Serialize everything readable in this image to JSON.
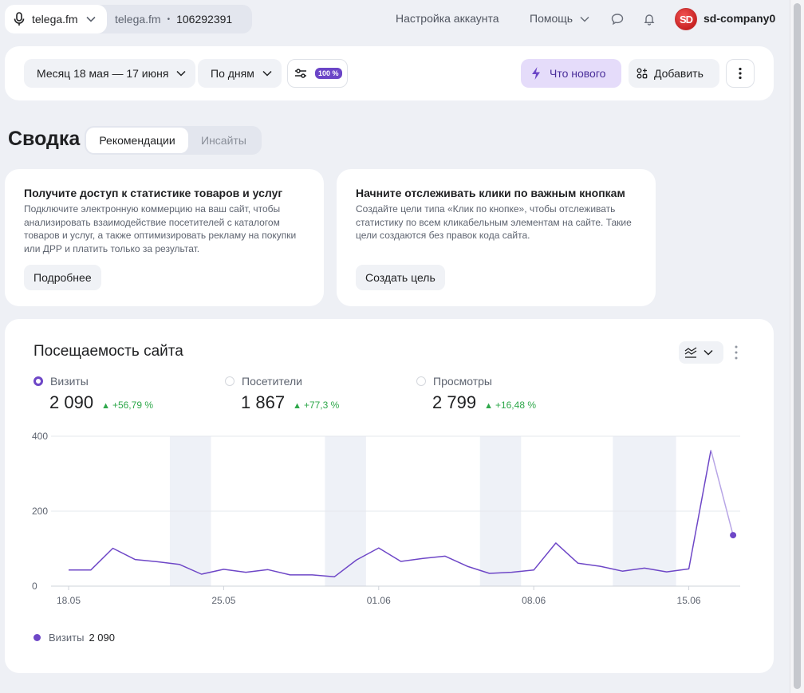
{
  "topbar": {
    "site_name": "telega.fm",
    "counter_site": "telega.fm",
    "counter_dot": "•",
    "counter_id": "106292391",
    "account_settings": "Настройка аккаунта",
    "help": "Помощь",
    "avatar_text": "SD",
    "username": "sd-company0"
  },
  "filters": {
    "period": "Месяц 18 мая — 17 июня",
    "grouping": "По дням",
    "sampling_badge": "100 %",
    "whats_new": "Что нового",
    "add": "Добавить"
  },
  "summary": {
    "title": "Сводка",
    "tabs": [
      "Рекомендации",
      "Инсайты"
    ],
    "cards": [
      {
        "title": "Получите доступ к статистике товаров и услуг",
        "text": "Подключите электронную коммерцию на ваш сайт, чтобы анализировать взаимодействие посетителей с каталогом товаров и услуг, а также оптимизировать рекламу на покупки или ДРР и платить только за результат.",
        "button": "Подробнее"
      },
      {
        "title": "Начните отслеживать клики по важным кнопкам",
        "text": "Создайте цели типа «Клик по кнопке», чтобы отслеживать статистику по всем кликабельным элементам на сайте. Такие цели создаются без правок кода сайта.",
        "button": "Создать цель"
      }
    ]
  },
  "traffic": {
    "title": "Посещаемость сайта",
    "metrics": [
      {
        "name": "Визиты",
        "value": "2 090",
        "delta": "+56,79 %",
        "selected": true
      },
      {
        "name": "Посетители",
        "value": "1 867",
        "delta": "+77,3 %",
        "selected": false
      },
      {
        "name": "Просмотры",
        "value": "2 799",
        "delta": "+16,48 %",
        "selected": false
      }
    ],
    "legend_name": "Визиты",
    "legend_value": "2 090"
  },
  "colors": {
    "accent": "#6e47c7",
    "positive": "#2fa84b",
    "weekend_band": "#eef1f7"
  },
  "chart_data": {
    "type": "line",
    "ylim": [
      0,
      400
    ],
    "yticks": [
      "0",
      "200",
      "400"
    ],
    "xtick_labels": [
      "18.05",
      "25.05",
      "01.06",
      "08.06",
      "15.06"
    ],
    "xtick_index": [
      0,
      7,
      14,
      21,
      28
    ],
    "weekend_bands": [
      [
        5,
        6
      ],
      [
        12,
        13
      ],
      [
        19,
        20
      ],
      [
        25,
        27
      ]
    ],
    "series": [
      {
        "name": "Визиты",
        "values": [
          43,
          43,
          101,
          71,
          65,
          58,
          32,
          45,
          37,
          44,
          30,
          30,
          25,
          70,
          102,
          66,
          74,
          80,
          53,
          34,
          37,
          43,
          115,
          61,
          53,
          40,
          48,
          38,
          46,
          363,
          136
        ],
        "partial_last": true
      }
    ]
  }
}
